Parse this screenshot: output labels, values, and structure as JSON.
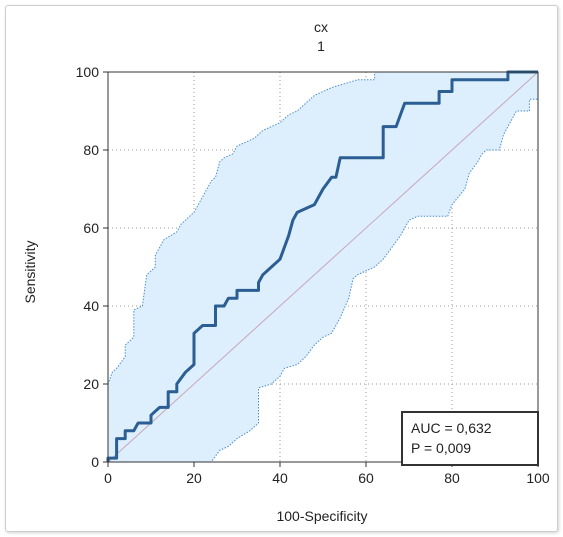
{
  "chart_data": {
    "type": "line",
    "title": "cx",
    "subtitle": "1",
    "xlabel": "100-Specificity",
    "ylabel": "Sensitivity",
    "xlim": [
      0,
      100
    ],
    "ylim": [
      0,
      100
    ],
    "xticks": [
      "0",
      "20",
      "40",
      "60",
      "80",
      "100"
    ],
    "yticks": [
      "0",
      "20",
      "40",
      "60",
      "80",
      "100"
    ],
    "grid": true,
    "annotation": {
      "auc": "AUC = 0,632",
      "p": "P = 0,009"
    },
    "colors": {
      "roc": "#2b5f93",
      "band_fill": "#ddeefd",
      "band_edge": "#4a8fd0",
      "diagonal": "#c9a7b7"
    },
    "roc_curve": [
      [
        0,
        0
      ],
      [
        0,
        1
      ],
      [
        2,
        1
      ],
      [
        2,
        6
      ],
      [
        4,
        6
      ],
      [
        4,
        8
      ],
      [
        6,
        8
      ],
      [
        7,
        10
      ],
      [
        10,
        10
      ],
      [
        10,
        12
      ],
      [
        12,
        14
      ],
      [
        14,
        14
      ],
      [
        14,
        18
      ],
      [
        16,
        18
      ],
      [
        16,
        20
      ],
      [
        18,
        23
      ],
      [
        20,
        25
      ],
      [
        20,
        33
      ],
      [
        22,
        35
      ],
      [
        25,
        35
      ],
      [
        25,
        40
      ],
      [
        27,
        40
      ],
      [
        28,
        42
      ],
      [
        30,
        42
      ],
      [
        30,
        44
      ],
      [
        35,
        44
      ],
      [
        35,
        46
      ],
      [
        36,
        48
      ],
      [
        38,
        50
      ],
      [
        40,
        52
      ],
      [
        41,
        55
      ],
      [
        42,
        58
      ],
      [
        43,
        62
      ],
      [
        44,
        64
      ],
      [
        46,
        65
      ],
      [
        48,
        66
      ],
      [
        50,
        70
      ],
      [
        52,
        73
      ],
      [
        53,
        73
      ],
      [
        54,
        78
      ],
      [
        64,
        78
      ],
      [
        64,
        86
      ],
      [
        67,
        86
      ],
      [
        68,
        89
      ],
      [
        69,
        92
      ],
      [
        76,
        92
      ],
      [
        77,
        92
      ],
      [
        77,
        95
      ],
      [
        80,
        95
      ],
      [
        80,
        98
      ],
      [
        93,
        98
      ],
      [
        93,
        100
      ],
      [
        100,
        100
      ]
    ],
    "ci_upper": [
      [
        0,
        3
      ],
      [
        0,
        20
      ],
      [
        1,
        23
      ],
      [
        2,
        24
      ],
      [
        4,
        27
      ],
      [
        4,
        30
      ],
      [
        6,
        32
      ],
      [
        6,
        39
      ],
      [
        8,
        40
      ],
      [
        9,
        48
      ],
      [
        11,
        50
      ],
      [
        11,
        53
      ],
      [
        13,
        57
      ],
      [
        16,
        59
      ],
      [
        17,
        61
      ],
      [
        20,
        64
      ],
      [
        21,
        66
      ],
      [
        22,
        68
      ],
      [
        24,
        72
      ],
      [
        25,
        73
      ],
      [
        26,
        77
      ],
      [
        27,
        78
      ],
      [
        29,
        79
      ],
      [
        30,
        81
      ],
      [
        34,
        83
      ],
      [
        35,
        84
      ],
      [
        36,
        85
      ],
      [
        38,
        86
      ],
      [
        40,
        87
      ],
      [
        42,
        89
      ],
      [
        44,
        90
      ],
      [
        46,
        92
      ],
      [
        48,
        94
      ],
      [
        50,
        95
      ],
      [
        52,
        96
      ],
      [
        55,
        97
      ],
      [
        58,
        98
      ],
      [
        62,
        98
      ],
      [
        62,
        100
      ],
      [
        100,
        100
      ]
    ],
    "ci_lower": [
      [
        0,
        0
      ],
      [
        0,
        0
      ],
      [
        3,
        0
      ],
      [
        3,
        0
      ],
      [
        11,
        0
      ],
      [
        24,
        0
      ],
      [
        26,
        3
      ],
      [
        28,
        4
      ],
      [
        30,
        6
      ],
      [
        33,
        8
      ],
      [
        35,
        10
      ],
      [
        35,
        19
      ],
      [
        38,
        20
      ],
      [
        40,
        22
      ],
      [
        41,
        24
      ],
      [
        44,
        25
      ],
      [
        46,
        27
      ],
      [
        48,
        30
      ],
      [
        50,
        32
      ],
      [
        52,
        33
      ],
      [
        54,
        37
      ],
      [
        56,
        42
      ],
      [
        57,
        47
      ],
      [
        58,
        48
      ],
      [
        62,
        50
      ],
      [
        64,
        52
      ],
      [
        66,
        55
      ],
      [
        68,
        58
      ],
      [
        70,
        62
      ],
      [
        72,
        63
      ],
      [
        79,
        63
      ],
      [
        80,
        66
      ],
      [
        83,
        70
      ],
      [
        84,
        74
      ],
      [
        86,
        77
      ],
      [
        87,
        79
      ],
      [
        88,
        80
      ],
      [
        91,
        80
      ],
      [
        92,
        84
      ],
      [
        93,
        86
      ],
      [
        94,
        88
      ],
      [
        95,
        90
      ],
      [
        98,
        90
      ],
      [
        98,
        93
      ],
      [
        100,
        93
      ]
    ]
  }
}
